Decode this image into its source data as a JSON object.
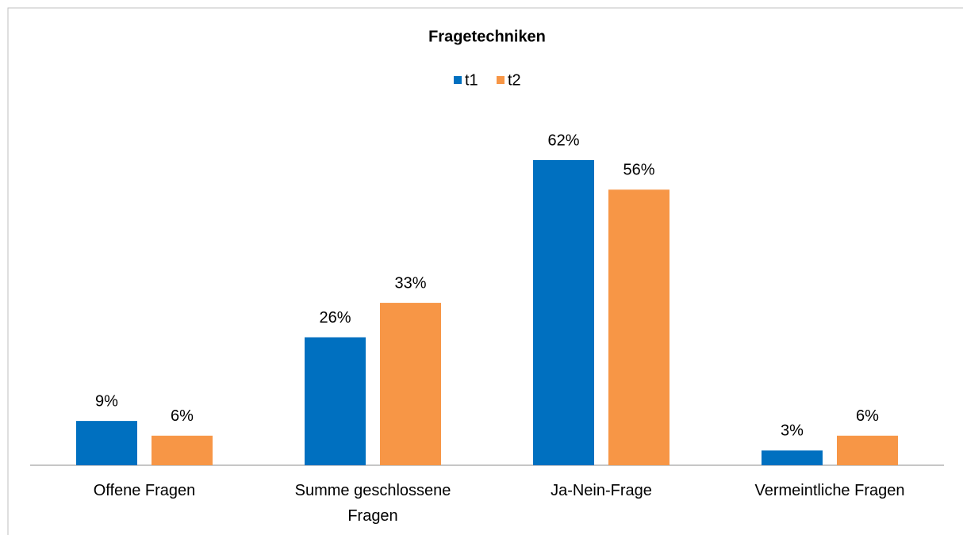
{
  "chart_data": {
    "type": "bar",
    "title": "Fragetechniken",
    "categories": [
      "Offene Fragen",
      "Summe geschlossene Fragen",
      "Ja-Nein-Frage",
      "Vermeintliche Fragen"
    ],
    "series": [
      {
        "name": "t1",
        "color": "#0070c0",
        "values": [
          9,
          26,
          62,
          3
        ],
        "value_labels": [
          "9%",
          "26%",
          "62%",
          "3%"
        ]
      },
      {
        "name": "t2",
        "color": "#f79646",
        "values": [
          6,
          33,
          56,
          6
        ],
        "value_labels": [
          "6%",
          "33%",
          "56%",
          "6%"
        ]
      }
    ],
    "legend": "top"
  }
}
